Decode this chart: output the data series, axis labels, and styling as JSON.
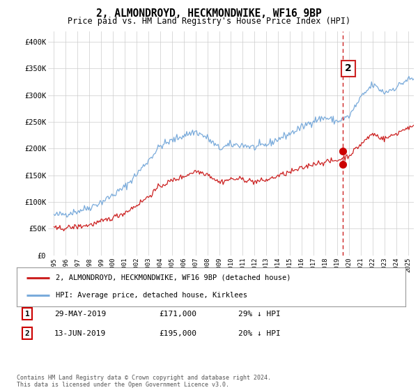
{
  "title": "2, ALMONDROYD, HECKMONDWIKE, WF16 9BP",
  "subtitle": "Price paid vs. HM Land Registry's House Price Index (HPI)",
  "hpi_color": "#7aabdb",
  "pp_color": "#cc2222",
  "vline_color": "#cc2222",
  "marker_color": "#cc0000",
  "yticks": [
    0,
    50000,
    100000,
    150000,
    200000,
    250000,
    300000,
    350000,
    400000
  ],
  "ytick_labels": [
    "£0",
    "£50K",
    "£100K",
    "£150K",
    "£200K",
    "£250K",
    "£300K",
    "£350K",
    "£400K"
  ],
  "xtick_years": [
    1995,
    1996,
    1997,
    1998,
    1999,
    2000,
    2001,
    2002,
    2003,
    2004,
    2005,
    2006,
    2007,
    2008,
    2009,
    2010,
    2011,
    2012,
    2013,
    2014,
    2015,
    2016,
    2017,
    2018,
    2019,
    2020,
    2021,
    2022,
    2023,
    2024,
    2025
  ],
  "xlim": [
    1994.5,
    2025.5
  ],
  "ylim": [
    0,
    420000
  ],
  "label2_text": "2",
  "label2_year": 2019.5,
  "label2_price": 350000,
  "sale1_year": 2019.45,
  "sale1_price": 195000,
  "sale2_year": 2019.45,
  "sale2_price": 171000,
  "vline_year": 2019.45,
  "legend_label_pp": "2, ALMONDROYD, HECKMONDWIKE, WF16 9BP (detached house)",
  "legend_label_hpi": "HPI: Average price, detached house, Kirklees",
  "transaction1_num": "1",
  "transaction1_date": "29-MAY-2019",
  "transaction1_price": "£171,000",
  "transaction1_hpi": "29% ↓ HPI",
  "transaction2_num": "2",
  "transaction2_date": "13-JUN-2019",
  "transaction2_price": "£195,000",
  "transaction2_hpi": "20% ↓ HPI",
  "footer": "Contains HM Land Registry data © Crown copyright and database right 2024.\nThis data is licensed under the Open Government Licence v3.0.",
  "bg_color": "#ffffff",
  "grid_color": "#cccccc"
}
